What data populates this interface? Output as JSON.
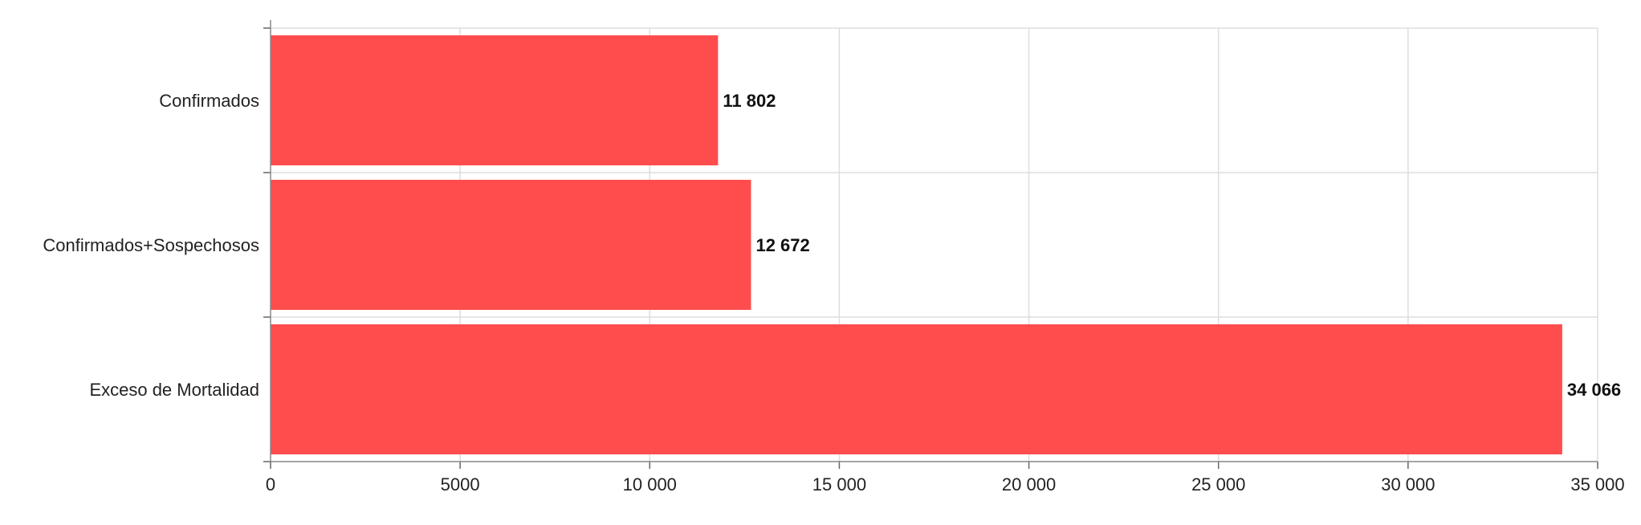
{
  "chart_data": {
    "type": "bar",
    "orientation": "horizontal",
    "categories": [
      "Confirmados",
      "Confirmados+Sospechosos",
      "Exceso de Mortalidad"
    ],
    "values": [
      11802,
      12672,
      34066
    ],
    "value_labels": [
      "11 802",
      "12 672",
      "34 066"
    ],
    "xlim": [
      0,
      35000
    ],
    "x_ticks": [
      0,
      5000,
      10000,
      15000,
      20000,
      25000,
      30000,
      35000
    ],
    "x_tick_labels": [
      "0",
      "5000",
      "10 000",
      "15 000",
      "20 000",
      "25 000",
      "30 000",
      "35 000"
    ],
    "bar_color": "#ff4d4d",
    "grid": true,
    "legend": "none"
  }
}
